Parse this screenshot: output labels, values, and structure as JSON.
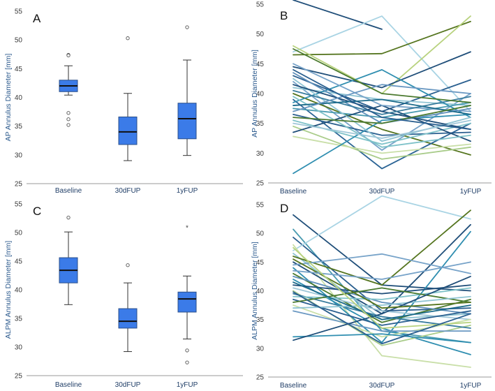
{
  "chart_data": [
    {
      "panel": "A",
      "type": "boxplot",
      "ylabel": "AP Annulus Diameter [mm]",
      "categories": [
        "Baseline",
        "30dFUP",
        "1yFUP"
      ],
      "ylim": [
        25,
        55
      ],
      "yticks": [
        25,
        30,
        35,
        40,
        45,
        50,
        55
      ],
      "boxes": [
        {
          "min": 40.4,
          "q1": 41.0,
          "median": 42.0,
          "q3": 43.0,
          "max": 45.5,
          "outliers": [
            47.4,
            47.3,
            37.3,
            36.2,
            35.2
          ],
          "extremes": []
        },
        {
          "min": 29.0,
          "q1": 31.8,
          "median": 34.0,
          "q3": 36.6,
          "max": 40.7,
          "outliers": [
            50.3
          ],
          "extremes": []
        },
        {
          "min": 29.9,
          "q1": 32.8,
          "median": 36.3,
          "q3": 39.0,
          "max": 46.5,
          "outliers": [
            52.2
          ],
          "extremes": []
        }
      ],
      "box_color": "#3b7be8"
    },
    {
      "panel": "B",
      "type": "line",
      "ylabel": "AP Annulus Diameter [mm]",
      "categories": [
        "Baseline",
        "30dFUP",
        "1yFUP"
      ],
      "ylim": [
        25,
        55
      ],
      "yticks": [
        25,
        30,
        35,
        40,
        45,
        50,
        55
      ],
      "series": [
        {
          "values": [
            55.7,
            50.8,
            null
          ],
          "color": "#1f4e79"
        },
        {
          "values": [
            47.0,
            53.0,
            37.0
          ],
          "color": "#a9d4e4"
        },
        {
          "values": [
            46.5,
            46.7,
            52.1
          ],
          "color": "#55751f"
        },
        {
          "values": [
            48.0,
            40.0,
            53.0
          ],
          "color": "#b8d27e"
        },
        {
          "values": [
            44.5,
            41.0,
            47.0
          ],
          "color": "#1f4e79"
        },
        {
          "values": [
            43.0,
            37.0,
            42.3
          ],
          "color": "#2a5f8f"
        },
        {
          "values": [
            42.0,
            30.5,
            40.0
          ],
          "color": "#77a3c9"
        },
        {
          "values": [
            41.0,
            39.0,
            38.0
          ],
          "color": "#8fc4d3"
        },
        {
          "values": [
            40.0,
            34.0,
            29.7
          ],
          "color": "#55751f"
        },
        {
          "values": [
            39.0,
            27.4,
            35.0
          ],
          "color": "#2b6495"
        },
        {
          "values": [
            38.5,
            44.0,
            36.0
          ],
          "color": "#2f8eb0"
        },
        {
          "values": [
            37.5,
            36.0,
            38.5
          ],
          "color": "#4a9bb0"
        },
        {
          "values": [
            36.5,
            33.0,
            33.5
          ],
          "color": "#2a5f8f"
        },
        {
          "values": [
            35.5,
            31.5,
            35.0
          ],
          "color": "#7fc2c9"
        },
        {
          "values": [
            34.5,
            29.0,
            31.0
          ],
          "color": "#a9cc8a"
        },
        {
          "values": [
            33.5,
            38.0,
            32.0
          ],
          "color": "#1f4e79"
        },
        {
          "values": [
            32.8,
            30.0,
            31.5
          ],
          "color": "#c9dfa8"
        },
        {
          "values": [
            26.6,
            35.5,
            36.5
          ],
          "color": "#2f8eb0"
        },
        {
          "values": [
            45.0,
            38.0,
            37.0
          ],
          "color": "#77a3c9"
        },
        {
          "values": [
            43.5,
            35.0,
            37.5
          ],
          "color": "#5f8fba"
        },
        {
          "values": [
            42.5,
            32.0,
            36.0
          ],
          "color": "#8fc4d3"
        },
        {
          "values": [
            41.5,
            37.0,
            34.0
          ],
          "color": "#1f4e79"
        },
        {
          "values": [
            40.5,
            36.5,
            39.5
          ],
          "color": "#3a7d9e"
        },
        {
          "values": [
            39.5,
            31.0,
            33.0
          ],
          "color": "#7fc2c9"
        },
        {
          "values": [
            38.0,
            39.0,
            36.5
          ],
          "color": "#1b6a8a"
        },
        {
          "values": [
            37.0,
            41.5,
            40.0
          ],
          "color": "#6a98c2"
        },
        {
          "values": [
            36.0,
            35.0,
            38.0
          ],
          "color": "#4b7a2f"
        },
        {
          "values": [
            35.0,
            32.5,
            35.5
          ],
          "color": "#9fc7d8"
        },
        {
          "values": [
            44.0,
            36.0,
            34.0
          ],
          "color": "#2a5f8f"
        },
        {
          "values": [
            47.5,
            40.0,
            38.5
          ],
          "color": "#4b7a2f"
        }
      ]
    },
    {
      "panel": "C",
      "type": "boxplot",
      "ylabel": "ALPM Annulus Diameter [mm]",
      "categories": [
        "Baseline",
        "30dFUP",
        "1yFUP"
      ],
      "ylim": [
        25,
        55
      ],
      "yticks": [
        25,
        30,
        35,
        40,
        45,
        50,
        55
      ],
      "boxes": [
        {
          "min": 37.4,
          "q1": 41.2,
          "median": 43.4,
          "q3": 45.6,
          "max": 50.1,
          "outliers": [
            52.6
          ],
          "extremes": []
        },
        {
          "min": 29.2,
          "q1": 33.3,
          "median": 34.5,
          "q3": 36.7,
          "max": 41.2,
          "outliers": [
            44.3
          ],
          "extremes": []
        },
        {
          "min": 31.4,
          "q1": 36.1,
          "median": 38.4,
          "q3": 39.6,
          "max": 42.4,
          "outliers": [
            29.4,
            27.3
          ],
          "extremes": [
            50.9
          ]
        }
      ],
      "box_color": "#3b7be8"
    },
    {
      "panel": "D",
      "type": "line",
      "ylabel": "ALPM Annulus Diameter [mm]",
      "categories": [
        "Baseline",
        "30dFUP",
        "1yFUP"
      ],
      "ylim": [
        25,
        55
      ],
      "yticks": [
        25,
        30,
        35,
        40,
        45,
        50,
        55
      ],
      "series": [
        {
          "values": [
            53.2,
            41.0,
            40.0
          ],
          "color": "#1f4e79"
        },
        {
          "values": [
            50.7,
            33.0,
            31.0
          ],
          "color": "#4a9bb0"
        },
        {
          "values": [
            49.3,
            36.5,
            37.0
          ],
          "color": "#2a5f8f"
        },
        {
          "values": [
            47.0,
            56.5,
            52.5
          ],
          "color": "#a9d4e4"
        },
        {
          "values": [
            48.0,
            28.7,
            26.7
          ],
          "color": "#c9dfa8"
        },
        {
          "values": [
            46.5,
            35.0,
            36.0
          ],
          "color": "#8fc4d3"
        },
        {
          "values": [
            46.0,
            41.0,
            54.0
          ],
          "color": "#55751f"
        },
        {
          "values": [
            45.0,
            36.0,
            51.5
          ],
          "color": "#1f4e79"
        },
        {
          "values": [
            44.5,
            46.4,
            43.0
          ],
          "color": "#77a3c9"
        },
        {
          "values": [
            44.0,
            31.0,
            50.3
          ],
          "color": "#2f8eb0"
        },
        {
          "values": [
            43.0,
            34.5,
            38.5
          ],
          "color": "#4b7a2f"
        },
        {
          "values": [
            42.5,
            38.0,
            36.0
          ],
          "color": "#5f8fba"
        },
        {
          "values": [
            42.0,
            33.5,
            28.9
          ],
          "color": "#2f8eb0"
        },
        {
          "values": [
            41.0,
            39.5,
            41.0
          ],
          "color": "#1f4e79"
        },
        {
          "values": [
            40.5,
            36.5,
            35.0
          ],
          "color": "#9fc7d8"
        },
        {
          "values": [
            40.0,
            30.5,
            34.0
          ],
          "color": "#a9cc8a"
        },
        {
          "values": [
            39.5,
            35.5,
            33.5
          ],
          "color": "#3a7d9e"
        },
        {
          "values": [
            39.0,
            38.5,
            40.5
          ],
          "color": "#7fc2c9"
        },
        {
          "values": [
            38.5,
            34.0,
            36.5
          ],
          "color": "#2a5f8f"
        },
        {
          "values": [
            38.0,
            40.5,
            38.0
          ],
          "color": "#4b7a2f"
        },
        {
          "values": [
            37.5,
            32.0,
            35.0
          ],
          "color": "#c9dfa8"
        },
        {
          "values": [
            37.0,
            37.5,
            39.0
          ],
          "color": "#8fc4d3"
        },
        {
          "values": [
            36.5,
            33.0,
            33.0
          ],
          "color": "#6a98c2"
        },
        {
          "values": [
            32.0,
            32.5,
            31.0
          ],
          "color": "#2f8eb0"
        },
        {
          "values": [
            31.4,
            36.0,
            42.5
          ],
          "color": "#1f4e79"
        },
        {
          "values": [
            45.5,
            37.0,
            38.0
          ],
          "color": "#55751f"
        },
        {
          "values": [
            43.5,
            42.0,
            45.0
          ],
          "color": "#77a3c9"
        },
        {
          "values": [
            41.5,
            35.0,
            37.5
          ],
          "color": "#1b6a8a"
        },
        {
          "values": [
            47.5,
            33.5,
            34.5
          ],
          "color": "#b8d27e"
        },
        {
          "values": [
            39.8,
            30.8,
            36.0
          ],
          "color": "#2a5f8f"
        }
      ]
    }
  ]
}
